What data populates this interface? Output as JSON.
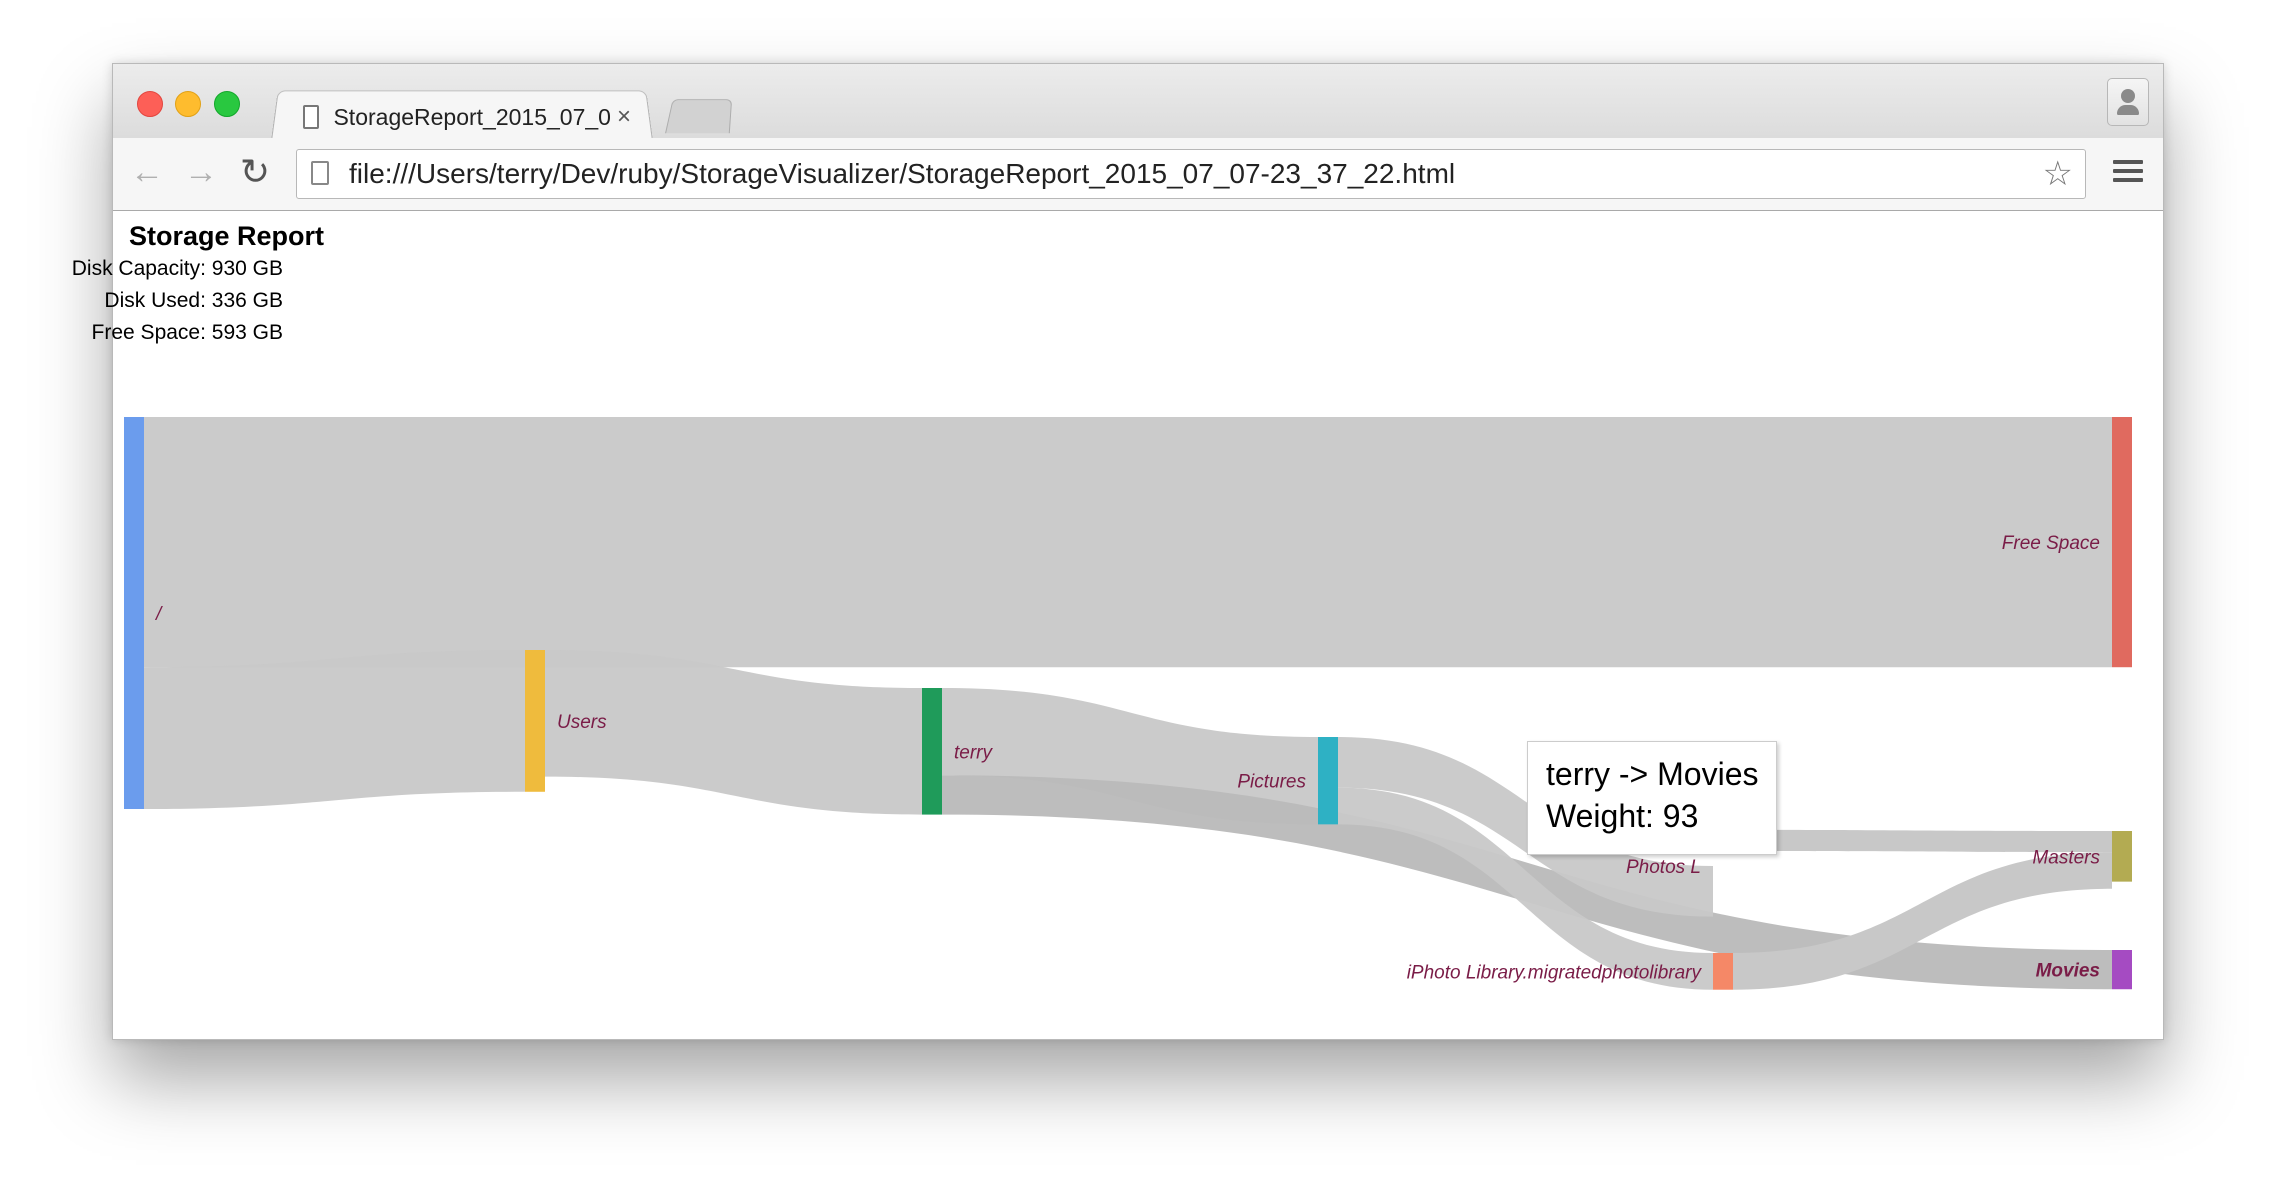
{
  "browser": {
    "tab_title": "StorageReport_2015_07_0",
    "tab_close": "×",
    "url": "file:///Users/terry/Dev/ruby/StorageVisualizer/StorageReport_2015_07_07-23_37_22.html",
    "icons": {
      "back": "arrow-left-icon",
      "forward": "arrow-right-icon",
      "reload": "reload-icon",
      "bookmark": "star-icon",
      "menu": "hamburger-menu-icon",
      "profile": "person-icon"
    }
  },
  "report": {
    "title": "Storage Report",
    "disk_capacity": "Disk Capacity: 930 GB",
    "disk_used": "Disk Used: 336 GB",
    "free_space": "Free Space: 593 GB"
  },
  "tooltip": {
    "line1": "terry -> Movies",
    "line2": "Weight: 93"
  },
  "chart_data": {
    "type": "sankey",
    "nodes": [
      {
        "id": "root",
        "label": "/",
        "color": "#6b9ced"
      },
      {
        "id": "users",
        "label": "Users",
        "color": "#efbb3d"
      },
      {
        "id": "terry",
        "label": "terry",
        "color": "#1f9b5a"
      },
      {
        "id": "pictures",
        "label": "Pictures",
        "color": "#2eb1c4"
      },
      {
        "id": "photos",
        "label": "Photos L",
        "color": "#f19c65"
      },
      {
        "id": "iphoto",
        "label": "iPhoto Library.migratedphotolibrary",
        "color": "#f58867"
      },
      {
        "id": "free",
        "label": "Free Space",
        "color": "#e06a5f"
      },
      {
        "id": "masters",
        "label": "Masters",
        "color": "#b3ab52"
      },
      {
        "id": "movies",
        "label": "Movies",
        "color": "#a54bc2"
      }
    ],
    "links": [
      {
        "source": "/",
        "target": "Free Space",
        "value": 593
      },
      {
        "source": "/",
        "target": "Users",
        "value": 336
      },
      {
        "source": "Users",
        "target": "terry",
        "value": 300
      },
      {
        "source": "terry",
        "target": "Pictures",
        "value": 207
      },
      {
        "source": "terry",
        "target": "Movies",
        "value": 93
      },
      {
        "source": "Pictures",
        "target": "Photos L",
        "value": 120
      },
      {
        "source": "Pictures",
        "target": "iPhoto Library.migratedphotolibrary",
        "value": 87
      }
    ]
  }
}
